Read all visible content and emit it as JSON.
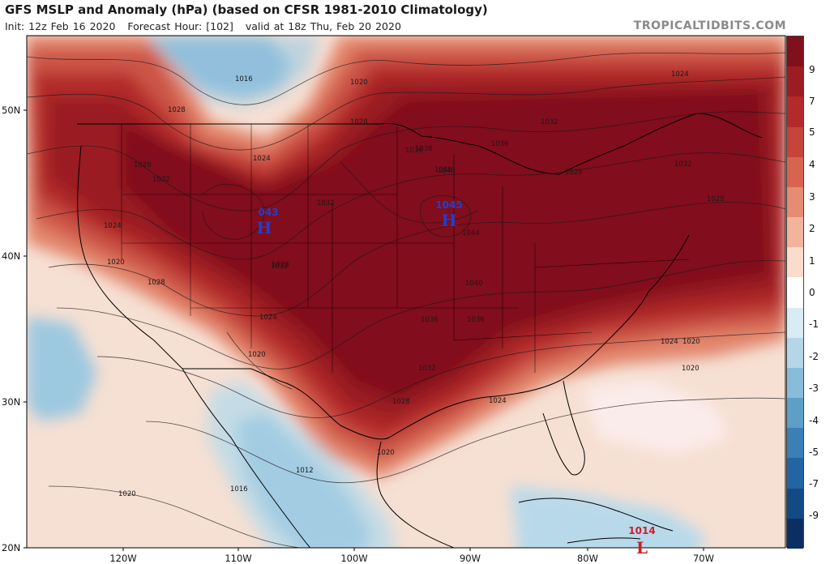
{
  "header": {
    "title": "GFS MSLP and Anomaly (hPa) (based on CFSR 1981-2010 Climatology)",
    "init": "Init: 12z Feb 16 2020",
    "forecast": "Forecast Hour: [102]",
    "valid": "valid at 18z Thu, Feb 20 2020",
    "source": "TROPICALTIDBITS.COM"
  },
  "latitude_labels": [
    "50N",
    "40N",
    "30N",
    "20N"
  ],
  "longitude_labels": [
    "120W",
    "110W",
    "100W",
    "90W",
    "80W",
    "70W"
  ],
  "colorbar": {
    "labels": [
      "9",
      "7",
      "5",
      "4",
      "3",
      "2",
      "1",
      "0",
      "-1",
      "-2",
      "-3",
      "-4",
      "-5",
      "-7",
      "-9"
    ],
    "colors": [
      "#80101c",
      "#9c1c23",
      "#b42a2a",
      "#c6443a",
      "#d7644f",
      "#e68c73",
      "#f2b49b",
      "#f9dccc",
      "#ffffff",
      "#d9ebf3",
      "#b4d6e6",
      "#88bcd8",
      "#5e9fc8",
      "#3a7fb6",
      "#2364a2",
      "#124a86",
      "#0b2f63"
    ]
  },
  "pressure_centers": [
    {
      "type": "H",
      "value": "043",
      "color": "#1d3fd6"
    },
    {
      "type": "H",
      "value": "1045",
      "color": "#1d3fd6"
    },
    {
      "type": "L",
      "value": "1014",
      "color": "#d01c2a"
    }
  ],
  "isobar_labels": [
    "1016",
    "1020",
    "1024",
    "1028",
    "1028",
    "1032",
    "1028",
    "1024",
    "1020",
    "1028",
    "1036",
    "1040",
    "1044",
    "1040",
    "1032",
    "1036",
    "1028",
    "1024",
    "1032",
    "1036",
    "1032",
    "1028",
    "1024",
    "1020",
    "1020",
    "1024",
    "1028",
    "1032",
    "1036",
    "1040",
    "1036",
    "1032",
    "1028",
    "1024",
    "1020",
    "1016",
    "1012",
    "1020",
    "1020"
  ]
}
